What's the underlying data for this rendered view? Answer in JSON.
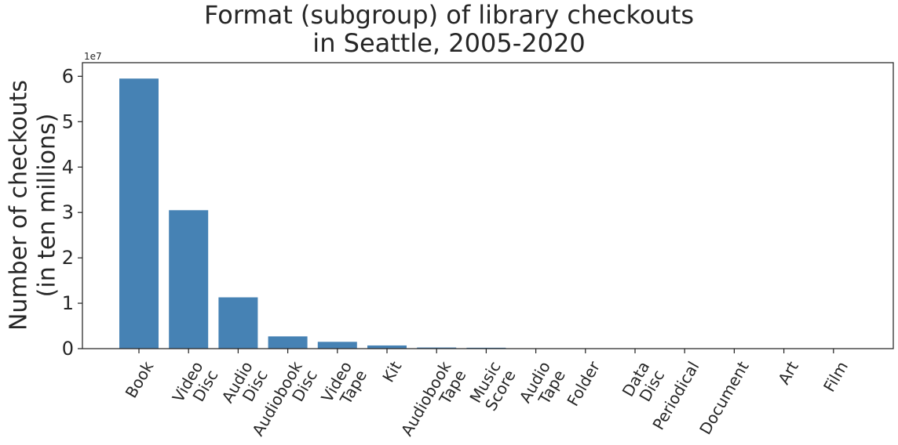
{
  "chart_data": {
    "type": "bar",
    "title": "Format (subgroup) of library checkouts\nin Seattle, 2005-2020",
    "xlabel": "",
    "ylabel": "Number of checkouts\n(in ten millions)",
    "axis_exponent_label": "1e7",
    "categories": [
      "Book",
      "Video\nDisc",
      "Audio\nDisc",
      "Audiobook\nDisc",
      "Video\nTape",
      "Kit",
      "Audiobook\nTape",
      "Music\nScore",
      "Audio\nTape",
      "Folder",
      "Data\nDisc",
      "Periodical",
      "Document",
      "Art",
      "Film"
    ],
    "values": [
      59500000,
      30500000,
      11300000,
      2700000,
      1500000,
      700000,
      250000,
      200000,
      20000,
      10000,
      10000,
      5000,
      3000,
      1000,
      500
    ],
    "yticks": [
      0,
      10000000,
      20000000,
      30000000,
      40000000,
      50000000,
      60000000
    ],
    "ytick_labels": [
      "0",
      "1",
      "2",
      "3",
      "4",
      "5",
      "6"
    ],
    "ylim": [
      0,
      63000000
    ],
    "bar_color": "#4682b4",
    "grid": false,
    "x_tick_rotation_deg": 60
  }
}
